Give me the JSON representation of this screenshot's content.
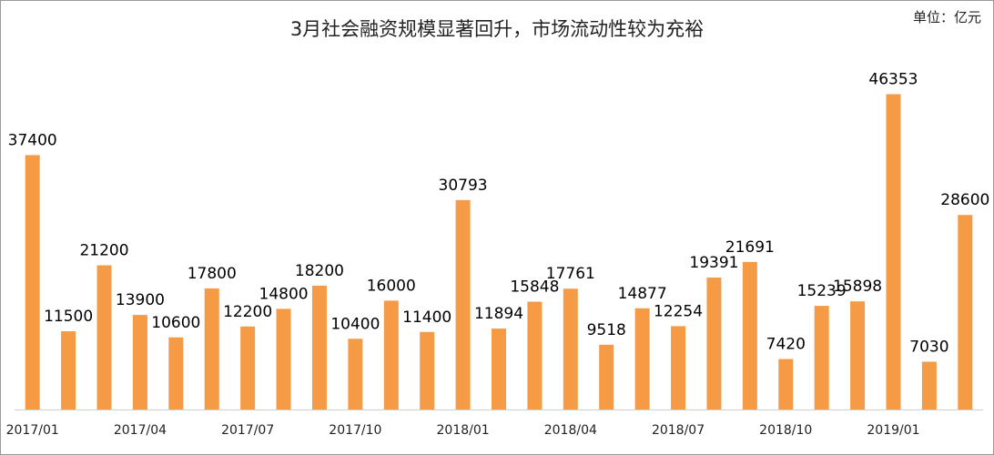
{
  "chart_data": {
    "type": "bar",
    "title": "3月社会融资规模显著回升，市场流动性较为充裕",
    "unit_label": "单位：亿元",
    "xlabel": "",
    "ylabel": "",
    "ylim": [
      0,
      47000
    ],
    "grid": false,
    "legend": "none",
    "bar_color": "#F59B46",
    "categories": [
      "2017/01",
      "2017/02",
      "2017/03",
      "2017/04",
      "2017/05",
      "2017/06",
      "2017/07",
      "2017/08",
      "2017/09",
      "2017/10",
      "2017/11",
      "2017/12",
      "2018/01",
      "2018/02",
      "2018/03",
      "2018/04",
      "2018/05",
      "2018/06",
      "2018/07",
      "2018/08",
      "2018/09",
      "2018/10",
      "2018/11",
      "2018/12",
      "2019/01",
      "2019/02",
      "2019/03"
    ],
    "tick_labels": [
      "2017/01",
      "",
      "",
      "2017/04",
      "",
      "",
      "2017/07",
      "",
      "",
      "2017/10",
      "",
      "",
      "2018/01",
      "",
      "",
      "2018/04",
      "",
      "",
      "2018/07",
      "",
      "",
      "2018/10",
      "",
      "",
      "2019/01",
      "",
      ""
    ],
    "values": [
      37400,
      11500,
      21200,
      13900,
      10600,
      17800,
      12200,
      14800,
      18200,
      10400,
      16000,
      11400,
      30793,
      11894,
      15848,
      17761,
      9518,
      14877,
      12254,
      19391,
      21691,
      7420,
      15239,
      15898,
      46353,
      7030,
      28600
    ]
  }
}
